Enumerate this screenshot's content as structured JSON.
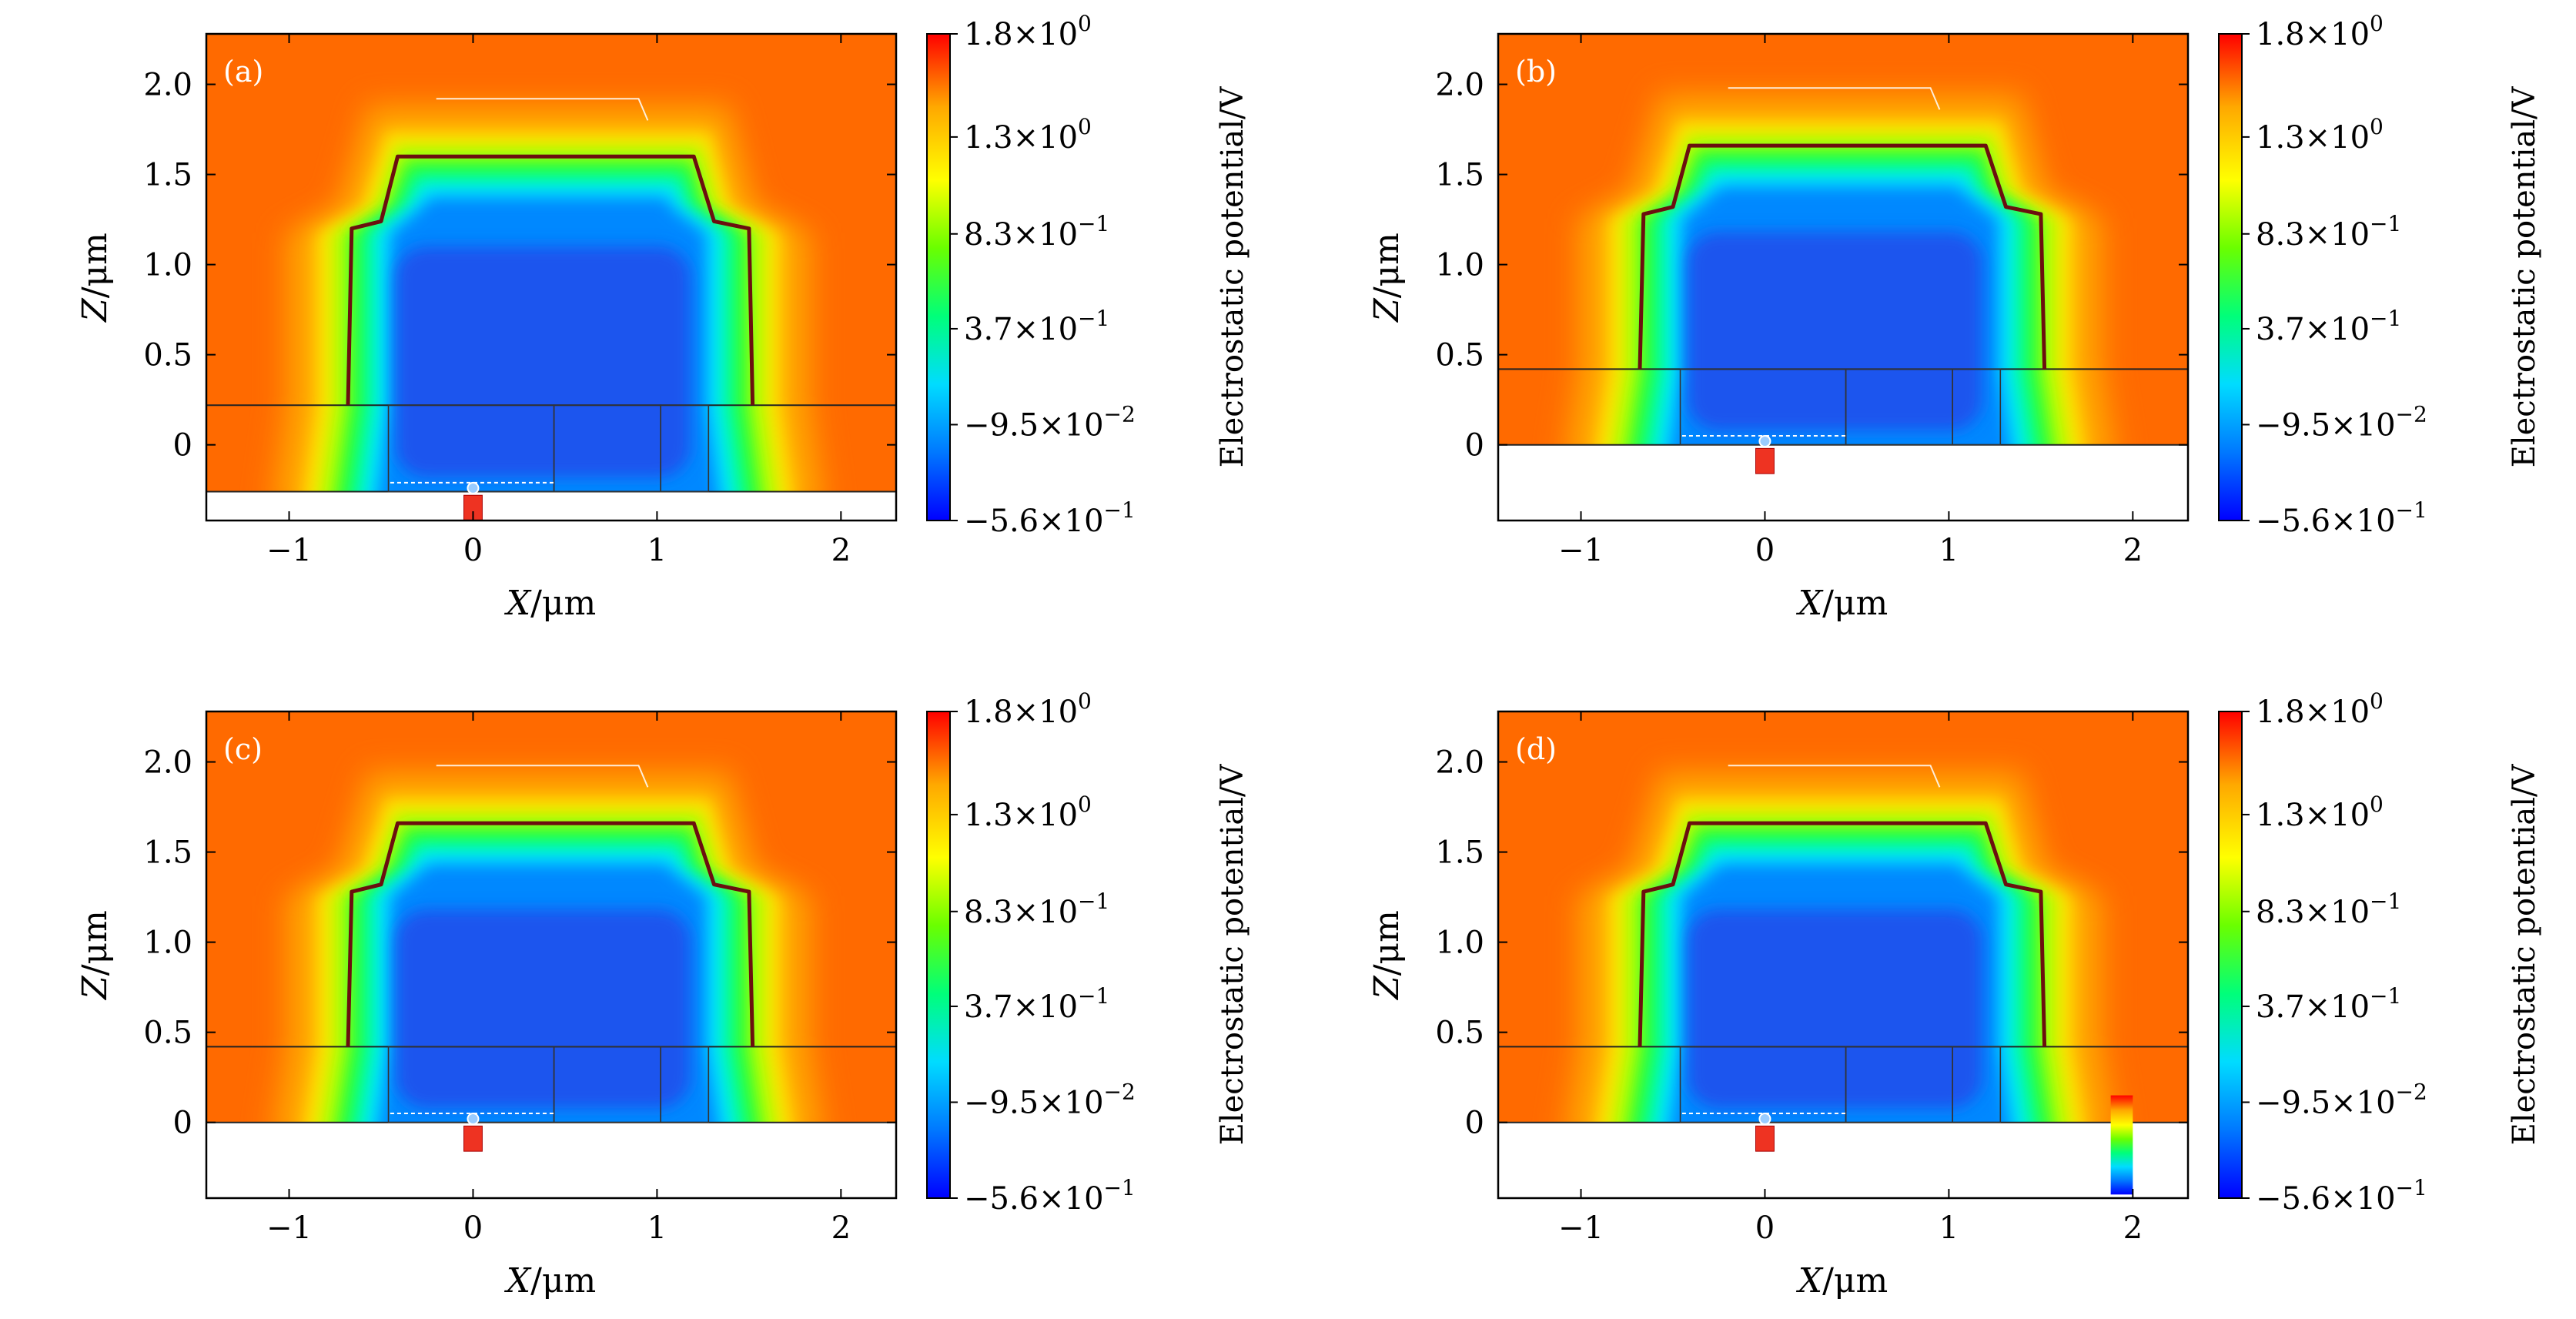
{
  "figure": {
    "xlabel_sym": "X",
    "xlabel_unit": "/μm",
    "ylabel_sym": "Z",
    "ylabel_unit": "/μm",
    "colorbar_label": "Electrostatic potential/V",
    "colorbar_ticks": [
      {
        "mant": "1.8",
        "exp": "0",
        "value": 1.8
      },
      {
        "mant": "1.3",
        "exp": "0",
        "value": 1.3
      },
      {
        "mant": "8.3",
        "exp": "−1",
        "value": 0.83
      },
      {
        "mant": "3.7",
        "exp": "−1",
        "value": 0.37
      },
      {
        "mant": "−9.5",
        "exp": "−2",
        "value": -0.095
      },
      {
        "mant": "−5.6",
        "exp": "−1",
        "value": -0.56
      }
    ],
    "x_ticks": [
      -1,
      0,
      1,
      2
    ],
    "x_tick_labels": [
      "−1",
      "0",
      "1",
      "2"
    ],
    "z_ticks": [
      0,
      0.5,
      1.0,
      1.5,
      2.0
    ],
    "z_tick_labels": [
      "0",
      "0.5",
      "1.0",
      "1.5",
      "2.0"
    ],
    "colors": {
      "background_field": "#ff6a00",
      "core": "#1f55ee",
      "outline": "#6b0f0f",
      "substrate": "#ffffff",
      "electrode": "#ee3322"
    },
    "colormap": [
      "#0000ff",
      "#0078ff",
      "#00dcff",
      "#00ff7a",
      "#6aff00",
      "#ffff00",
      "#ffa800",
      "#ff0000"
    ]
  },
  "chart_data": [
    {
      "type": "heatmap",
      "panel_label": "(a)",
      "xlim": [
        -1.45,
        2.3
      ],
      "zlim": [
        -0.42,
        2.28
      ],
      "interface_z": 0.22,
      "device_bottom_z": -0.26,
      "top_z": 1.6,
      "shoulder_z": 1.22,
      "potential_range": [
        -0.56,
        1.8
      ],
      "inset_colorbar": false
    },
    {
      "type": "heatmap",
      "panel_label": "(b)",
      "xlim": [
        -1.45,
        2.3
      ],
      "zlim": [
        -0.42,
        2.28
      ],
      "interface_z": 0.42,
      "device_bottom_z": 0.0,
      "top_z": 1.66,
      "shoulder_z": 1.3,
      "potential_range": [
        -0.56,
        1.8
      ],
      "inset_colorbar": false
    },
    {
      "type": "heatmap",
      "panel_label": "(c)",
      "xlim": [
        -1.45,
        2.3
      ],
      "zlim": [
        -0.42,
        2.28
      ],
      "interface_z": 0.42,
      "device_bottom_z": 0.0,
      "top_z": 1.66,
      "shoulder_z": 1.3,
      "potential_range": [
        -0.56,
        1.8
      ],
      "inset_colorbar": false
    },
    {
      "type": "heatmap",
      "panel_label": "(d)",
      "xlim": [
        -1.45,
        2.3
      ],
      "zlim": [
        -0.42,
        2.28
      ],
      "interface_z": 0.42,
      "device_bottom_z": 0.0,
      "top_z": 1.66,
      "shoulder_z": 1.3,
      "potential_range": [
        -0.56,
        1.8
      ],
      "inset_colorbar": true
    }
  ]
}
